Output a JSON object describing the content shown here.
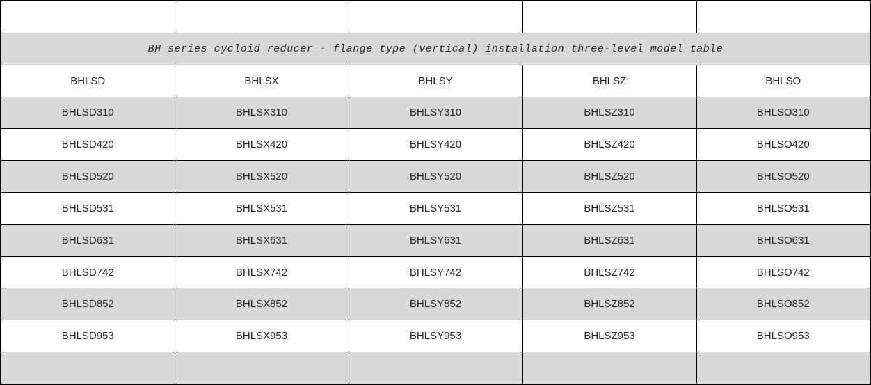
{
  "table": {
    "title": "BH series cycloid reducer - flange type (vertical) installation three-level model table",
    "columns": [
      "BHLSD",
      "BHLSX",
      "BHLSY",
      "BHLSZ",
      "BHLSO"
    ],
    "rows": [
      [
        "BHLSD310",
        "BHLSX310",
        "BHLSY310",
        "BHLSZ310",
        "BHLSO310"
      ],
      [
        "BHLSD420",
        "BHLSX420",
        "BHLSY420",
        "BHLSZ420",
        "BHLSO420"
      ],
      [
        "BHLSD520",
        "BHLSX520",
        "BHLSY520",
        "BHLSZ520",
        "BHLSO520"
      ],
      [
        "BHLSD531",
        "BHLSX531",
        "BHLSY531",
        "BHLSZ531",
        "BHLSO531"
      ],
      [
        "BHLSD631",
        "BHLSX631",
        "BHLSY631",
        "BHLSZ631",
        "BHLSO631"
      ],
      [
        "BHLSD742",
        "BHLSX742",
        "BHLSY742",
        "BHLSZ742",
        "BHLSO742"
      ],
      [
        "BHLSD852",
        "BHLSX852",
        "BHLSY852",
        "BHLSZ852",
        "BHLSO852"
      ],
      [
        "BHLSD953",
        "BHLSX953",
        "BHLSY953",
        "BHLSZ953",
        "BHLSO953"
      ]
    ],
    "shaded_row_indices_note": "model rows alternate shading starting shaded",
    "colors": {
      "shaded_row": "#d9d9d9",
      "border": "#000000",
      "text": "#262626",
      "background": "#ffffff"
    }
  }
}
